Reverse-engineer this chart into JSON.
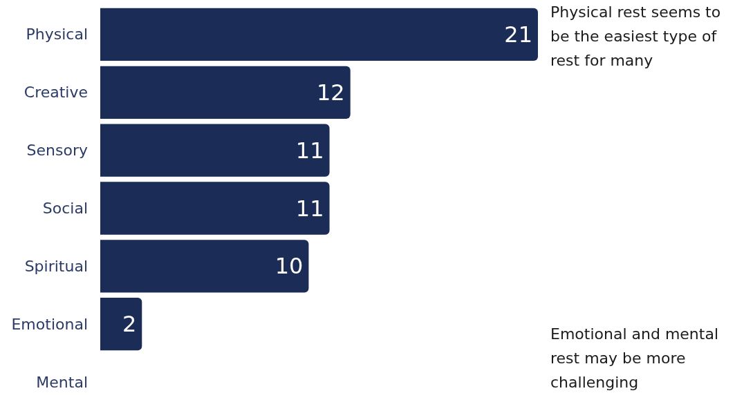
{
  "chart_data": {
    "type": "bar",
    "orientation": "horizontal",
    "categories": [
      "Physical",
      "Creative",
      "Sensory",
      "Social",
      "Spiritual",
      "Emotional",
      "Mental"
    ],
    "values": [
      21,
      12,
      11,
      11,
      10,
      2,
      0
    ],
    "value_labels": [
      "21",
      "12",
      "11",
      "11",
      "10",
      "2",
      null
    ],
    "color": "#1b2d57",
    "annotations": [
      "Physical rest seems to be the easiest type of rest for many",
      "Emotional and mental rest may be more challenging"
    ]
  }
}
